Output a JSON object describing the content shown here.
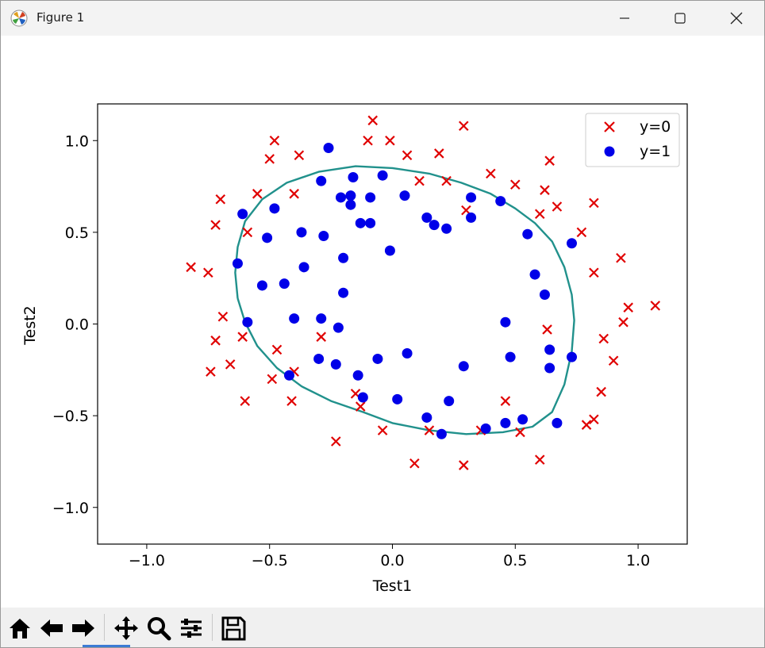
{
  "window": {
    "title": "Figure 1",
    "icon": "matplotlib-logo-icon",
    "controls": [
      "minimize-icon",
      "maximize-icon",
      "close-icon"
    ]
  },
  "toolbar": {
    "buttons": [
      "home-icon",
      "back-icon",
      "forward-icon",
      "pan-icon",
      "zoom-icon",
      "configure-subplots-icon",
      "save-icon"
    ]
  },
  "chart_data": {
    "type": "scatter",
    "xlabel": "Test1",
    "ylabel": "Test2",
    "xlim": [
      -1.2,
      1.2
    ],
    "ylim": [
      -1.2,
      1.2
    ],
    "xticks": [
      -1.0,
      -0.5,
      0.0,
      0.5,
      1.0
    ],
    "yticks": [
      -1.0,
      -0.5,
      0.0,
      0.5,
      1.0
    ],
    "xtick_labels": [
      "−1.0",
      "−0.5",
      "0.0",
      "0.5",
      "1.0"
    ],
    "ytick_labels": [
      "−1.0",
      "−0.5",
      "0.0",
      "0.5",
      "1.0"
    ],
    "grid": false,
    "legend_position": "top-right",
    "series": [
      {
        "name": "y=0",
        "marker": "x",
        "color": "#e00000",
        "points": [
          [
            -0.82,
            0.31
          ],
          [
            -0.75,
            0.28
          ],
          [
            -0.72,
            0.54
          ],
          [
            -0.7,
            0.68
          ],
          [
            -0.69,
            0.04
          ],
          [
            -0.72,
            -0.09
          ],
          [
            -0.74,
            -0.26
          ],
          [
            -0.66,
            -0.22
          ],
          [
            -0.61,
            -0.07
          ],
          [
            -0.6,
            -0.42
          ],
          [
            -0.59,
            0.5
          ],
          [
            -0.55,
            0.71
          ],
          [
            -0.5,
            0.9
          ],
          [
            -0.48,
            1.0
          ],
          [
            -0.38,
            0.92
          ],
          [
            -0.4,
            0.71
          ],
          [
            -0.47,
            -0.14
          ],
          [
            -0.49,
            -0.3
          ],
          [
            -0.4,
            -0.26
          ],
          [
            -0.41,
            -0.42
          ],
          [
            -0.29,
            -0.07
          ],
          [
            -0.23,
            -0.64
          ],
          [
            -0.15,
            -0.38
          ],
          [
            -0.13,
            -0.45
          ],
          [
            -0.1,
            1.0
          ],
          [
            -0.08,
            1.11
          ],
          [
            -0.01,
            1.0
          ],
          [
            -0.04,
            -0.58
          ],
          [
            0.06,
            0.92
          ],
          [
            0.11,
            0.78
          ],
          [
            0.09,
            -0.76
          ],
          [
            0.15,
            -0.58
          ],
          [
            0.19,
            0.93
          ],
          [
            0.22,
            0.78
          ],
          [
            0.29,
            1.08
          ],
          [
            0.3,
            0.62
          ],
          [
            0.29,
            -0.77
          ],
          [
            0.36,
            -0.58
          ],
          [
            0.4,
            0.82
          ],
          [
            0.5,
            0.76
          ],
          [
            0.46,
            -0.42
          ],
          [
            0.52,
            -0.59
          ],
          [
            0.6,
            0.6
          ],
          [
            0.62,
            0.73
          ],
          [
            0.64,
            0.89
          ],
          [
            0.67,
            0.64
          ],
          [
            0.63,
            -0.03
          ],
          [
            0.6,
            -0.74
          ],
          [
            0.77,
            0.5
          ],
          [
            0.82,
            0.66
          ],
          [
            0.82,
            0.28
          ],
          [
            0.86,
            -0.08
          ],
          [
            0.85,
            -0.37
          ],
          [
            0.9,
            -0.2
          ],
          [
            0.93,
            0.36
          ],
          [
            0.96,
            0.09
          ],
          [
            0.94,
            0.01
          ],
          [
            1.07,
            0.1
          ],
          [
            0.82,
            -0.52
          ],
          [
            0.79,
            -0.55
          ]
        ]
      },
      {
        "name": "y=1",
        "marker": "o",
        "color": "#0000e8",
        "points": [
          [
            -0.26,
            0.96
          ],
          [
            -0.29,
            0.78
          ],
          [
            -0.16,
            0.8
          ],
          [
            -0.04,
            0.81
          ],
          [
            -0.21,
            0.69
          ],
          [
            -0.17,
            0.7
          ],
          [
            -0.09,
            0.69
          ],
          [
            -0.17,
            0.65
          ],
          [
            -0.61,
            0.6
          ],
          [
            -0.48,
            0.63
          ],
          [
            -0.51,
            0.47
          ],
          [
            -0.37,
            0.5
          ],
          [
            -0.28,
            0.48
          ],
          [
            -0.13,
            0.55
          ],
          [
            -0.09,
            0.55
          ],
          [
            -0.2,
            0.36
          ],
          [
            -0.63,
            0.33
          ],
          [
            -0.53,
            0.21
          ],
          [
            -0.44,
            0.22
          ],
          [
            -0.36,
            0.31
          ],
          [
            -0.2,
            0.17
          ],
          [
            -0.01,
            0.4
          ],
          [
            0.05,
            0.7
          ],
          [
            0.14,
            0.58
          ],
          [
            0.17,
            0.54
          ],
          [
            0.22,
            0.52
          ],
          [
            0.32,
            0.69
          ],
          [
            0.32,
            0.58
          ],
          [
            0.44,
            0.67
          ],
          [
            0.55,
            0.49
          ],
          [
            0.58,
            0.27
          ],
          [
            0.62,
            0.16
          ],
          [
            -0.59,
            0.01
          ],
          [
            -0.4,
            0.03
          ],
          [
            -0.29,
            0.03
          ],
          [
            -0.22,
            -0.02
          ],
          [
            -0.3,
            -0.19
          ],
          [
            -0.23,
            -0.22
          ],
          [
            -0.06,
            -0.19
          ],
          [
            0.06,
            -0.16
          ],
          [
            -0.42,
            -0.28
          ],
          [
            -0.14,
            -0.28
          ],
          [
            -0.12,
            -0.4
          ],
          [
            0.02,
            -0.41
          ],
          [
            0.14,
            -0.51
          ],
          [
            0.2,
            -0.6
          ],
          [
            0.23,
            -0.42
          ],
          [
            0.29,
            -0.23
          ],
          [
            0.38,
            -0.57
          ],
          [
            0.46,
            0.01
          ],
          [
            0.48,
            -0.18
          ],
          [
            0.46,
            -0.54
          ],
          [
            0.53,
            -0.52
          ],
          [
            0.64,
            -0.14
          ],
          [
            0.64,
            -0.24
          ],
          [
            0.67,
            -0.54
          ],
          [
            0.73,
            0.44
          ],
          [
            0.73,
            -0.18
          ]
        ]
      }
    ],
    "decision_boundary": {
      "color": "#21918c",
      "points": [
        [
          -0.63,
          0.14
        ],
        [
          -0.64,
          0.28
        ],
        [
          -0.63,
          0.42
        ],
        [
          -0.6,
          0.56
        ],
        [
          -0.53,
          0.68
        ],
        [
          -0.43,
          0.77
        ],
        [
          -0.3,
          0.83
        ],
        [
          -0.15,
          0.86
        ],
        [
          0.0,
          0.85
        ],
        [
          0.15,
          0.82
        ],
        [
          0.28,
          0.77
        ],
        [
          0.4,
          0.71
        ],
        [
          0.5,
          0.63
        ],
        [
          0.58,
          0.55
        ],
        [
          0.65,
          0.45
        ],
        [
          0.7,
          0.31
        ],
        [
          0.73,
          0.16
        ],
        [
          0.74,
          0.02
        ],
        [
          0.73,
          -0.15
        ],
        [
          0.7,
          -0.33
        ],
        [
          0.65,
          -0.48
        ],
        [
          0.57,
          -0.56
        ],
        [
          0.45,
          -0.59
        ],
        [
          0.3,
          -0.6
        ],
        [
          0.15,
          -0.58
        ],
        [
          0.0,
          -0.54
        ],
        [
          -0.12,
          -0.48
        ],
        [
          -0.25,
          -0.42
        ],
        [
          -0.37,
          -0.34
        ],
        [
          -0.47,
          -0.24
        ],
        [
          -0.55,
          -0.12
        ],
        [
          -0.6,
          0.01
        ],
        [
          -0.63,
          0.14
        ]
      ]
    }
  }
}
